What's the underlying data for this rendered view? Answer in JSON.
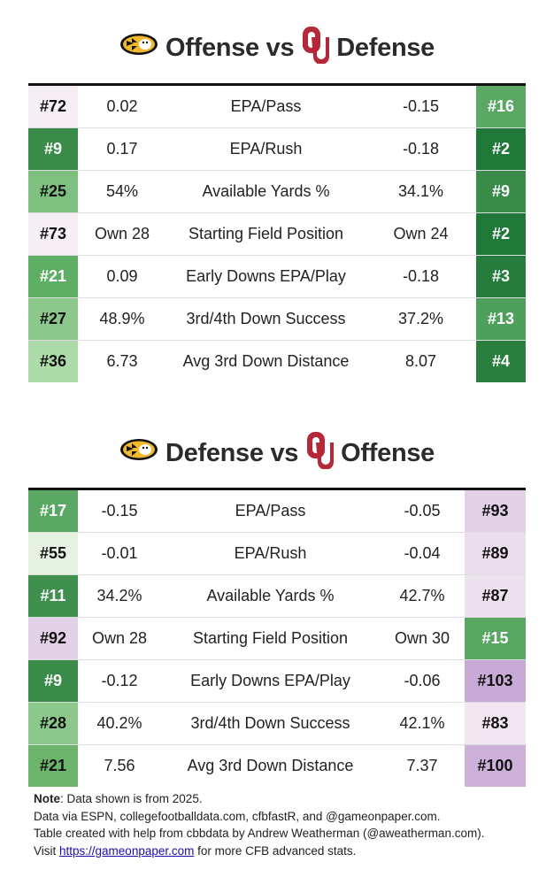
{
  "sections": [
    {
      "title_left": "Offense vs",
      "title_right": "Defense",
      "rows": [
        {
          "left_rank": "#72",
          "left_rank_color": "#f5eef5",
          "left_value": "0.02",
          "stat": "EPA/Pass",
          "right_value": "-0.15",
          "right_rank": "#16",
          "right_rank_color": "#5aa864"
        },
        {
          "left_rank": "#9",
          "left_rank_color": "#3a8a4a",
          "left_value": "0.17",
          "stat": "EPA/Rush",
          "right_value": "-0.18",
          "right_rank": "#2",
          "right_rank_color": "#1f7738"
        },
        {
          "left_rank": "#25",
          "left_rank_color": "#7fc080",
          "left_value": "54%",
          "stat": "Available Yards %",
          "right_value": "34.1%",
          "right_rank": "#9",
          "right_rank_color": "#3a8a4a"
        },
        {
          "left_rank": "#73",
          "left_rank_color": "#f5eef5",
          "left_value": "Own 28",
          "stat": "Starting Field Position",
          "right_value": "Own 24",
          "right_rank": "#2",
          "right_rank_color": "#1f7738"
        },
        {
          "left_rank": "#21",
          "left_rank_color": "#5fae66",
          "left_value": "0.09",
          "stat": "Early Downs EPA/Play",
          "right_value": "-0.18",
          "right_rank": "#3",
          "right_rank_color": "#267c3c"
        },
        {
          "left_rank": "#27",
          "left_rank_color": "#8cc88c",
          "left_value": "48.9%",
          "stat": "3rd/4th Down Success",
          "right_value": "37.2%",
          "right_rank": "#13",
          "right_rank_color": "#4f9f5c"
        },
        {
          "left_rank": "#36",
          "left_rank_color": "#acdaa8",
          "left_value": "6.73",
          "stat": "Avg 3rd Down Distance",
          "right_value": "8.07",
          "right_rank": "#4",
          "right_rank_color": "#2a7f3f"
        }
      ]
    },
    {
      "title_left": "Defense vs",
      "title_right": "Offense",
      "rows": [
        {
          "left_rank": "#17",
          "left_rank_color": "#5aa864",
          "left_value": "-0.15",
          "stat": "EPA/Pass",
          "right_value": "-0.05",
          "right_rank": "#93",
          "right_rank_color": "#e3d1e7"
        },
        {
          "left_rank": "#55",
          "left_rank_color": "#e5f2e2",
          "left_value": "-0.01",
          "stat": "EPA/Rush",
          "right_value": "-0.04",
          "right_rank": "#89",
          "right_rank_color": "#ecdeee"
        },
        {
          "left_rank": "#11",
          "left_rank_color": "#3f904f",
          "left_value": "34.2%",
          "stat": "Available Yards %",
          "right_value": "42.7%",
          "right_rank": "#87",
          "right_rank_color": "#ede0ef"
        },
        {
          "left_rank": "#92",
          "left_rank_color": "#e3d1e7",
          "left_value": "Own 28",
          "stat": "Starting Field Position",
          "right_value": "Own 30",
          "right_rank": "#15",
          "right_rank_color": "#57a661"
        },
        {
          "left_rank": "#9",
          "left_rank_color": "#3a8a4a",
          "left_value": "-0.12",
          "stat": "Early Downs EPA/Play",
          "right_value": "-0.06",
          "right_rank": "#103",
          "right_rank_color": "#c9a9d5"
        },
        {
          "left_rank": "#28",
          "left_rank_color": "#8cc88c",
          "left_value": "40.2%",
          "stat": "3rd/4th Down Success",
          "right_value": "42.1%",
          "right_rank": "#83",
          "right_rank_color": "#f0e5f1"
        },
        {
          "left_rank": "#21",
          "left_rank_color": "#6cb46c",
          "left_value": "7.56",
          "stat": "Avg 3rd Down Distance",
          "right_value": "7.37",
          "right_rank": "#100",
          "right_rank_color": "#ceb1da"
        }
      ]
    }
  ],
  "footnote": {
    "note_label": "Note",
    "note_text": ": Data shown is from 2025.",
    "line2": "Data via ESPN, collegefootballdata.com, cfbfastR, and @gameonpaper.com.",
    "line3": "Table created with help from cbbdata by Andrew Weatherman (@aweatherman.com).",
    "line4_prefix": "Visit ",
    "link": "https://gameonpaper.com",
    "line4_suffix": " for more CFB advanced stats."
  },
  "logos": {
    "left": "missouri-tiger-logo",
    "right": "oklahoma-ou-logo",
    "mizzou_gold": "#f1b82d",
    "ou_crimson": "#b5283a"
  }
}
